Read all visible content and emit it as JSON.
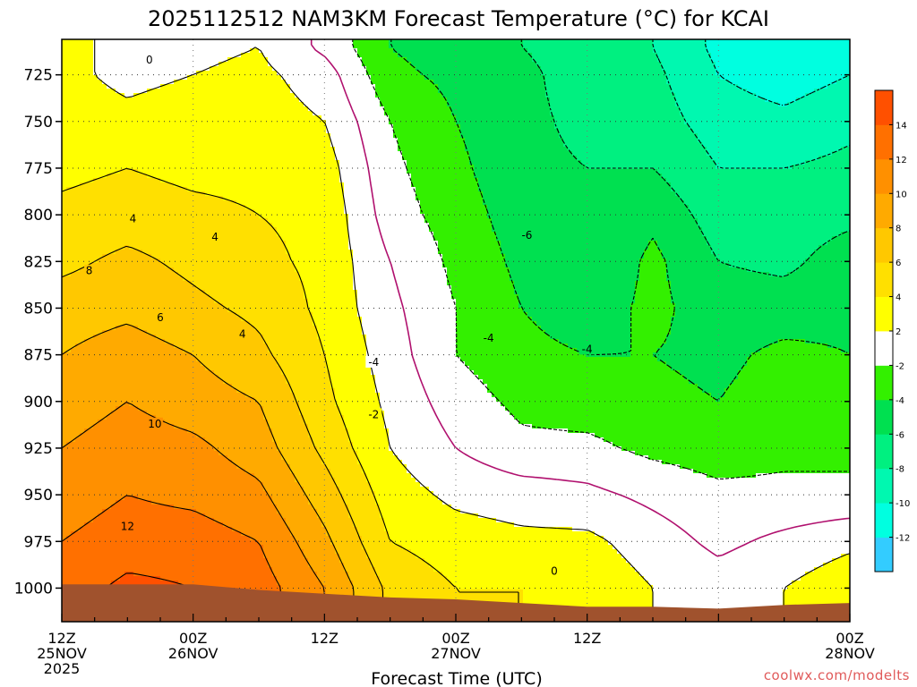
{
  "chart_data": {
    "type": "heatmap",
    "title": "2025112512 NAM3KM Forecast Temperature (°C) for KCAI",
    "xlabel": "Forecast Time (UTC)",
    "ylabel": "",
    "credit": "coolwx.com/modelts",
    "x_ticks": [
      {
        "time": "2025-11-25 12Z",
        "lines": [
          "12Z",
          "25NOV",
          "2025"
        ]
      },
      {
        "time": "2025-11-26 00Z",
        "lines": [
          "00Z",
          "26NOV"
        ]
      },
      {
        "time": "2025-11-26 12Z",
        "lines": [
          "12Z"
        ]
      },
      {
        "time": "2025-11-27 00Z",
        "lines": [
          "00Z",
          "27NOV"
        ]
      },
      {
        "time": "2025-11-27 12Z",
        "lines": [
          "12Z"
        ]
      },
      {
        "time": "2025-11-28 00Z",
        "lines": [
          "00Z",
          "28NOV"
        ]
      }
    ],
    "y_axis": {
      "unit": "hPa",
      "range": [
        1018,
        706
      ],
      "ticks": [
        725,
        750,
        775,
        800,
        825,
        850,
        875,
        900,
        925,
        950,
        975,
        1000
      ]
    },
    "colorbar": {
      "levels": [
        -14,
        -12,
        -10,
        -8,
        -6,
        -4,
        -2,
        2,
        4,
        6,
        8,
        10,
        12,
        14,
        16
      ],
      "tick_labels": [
        "-12",
        "-10",
        "-8",
        "-6",
        "-4",
        "-2",
        "2",
        "4",
        "6",
        "8",
        "10",
        "12",
        "14"
      ],
      "colors": [
        "#33ccff",
        "#00ffe0",
        "#00f8b0",
        "#00f080",
        "#00e050",
        "#33f000",
        "#ffffff",
        "#ffff00",
        "#ffe000",
        "#ffc800",
        "#ffaa00",
        "#ff9000",
        "#ff7000",
        "#ff5000"
      ]
    },
    "contour_labels": [
      {
        "text": "0",
        "time_h": 8.0,
        "p": 717
      },
      {
        "text": "4",
        "time_h": 6.5,
        "p": 802
      },
      {
        "text": "4",
        "time_h": 14.0,
        "p": 812
      },
      {
        "text": "8",
        "time_h": 2.5,
        "p": 830
      },
      {
        "text": "6",
        "time_h": 9.0,
        "p": 855
      },
      {
        "text": "4",
        "time_h": 16.5,
        "p": 864
      },
      {
        "text": "10",
        "time_h": 8.5,
        "p": 912
      },
      {
        "text": "12",
        "time_h": 6.0,
        "p": 967
      },
      {
        "text": "-4",
        "time_h": 28.5,
        "p": 879
      },
      {
        "text": "-2",
        "time_h": 28.5,
        "p": 907
      },
      {
        "text": "-6",
        "time_h": 42.5,
        "p": 811
      },
      {
        "text": "-4",
        "time_h": 39.0,
        "p": 866
      },
      {
        "text": "-4",
        "time_h": 48.0,
        "p": 872
      },
      {
        "text": "0",
        "time_h": 45.0,
        "p": 991
      }
    ],
    "surface_pressure_hPa": [
      [
        0,
        998
      ],
      [
        12,
        998
      ],
      [
        18,
        1001
      ],
      [
        24,
        1003
      ],
      [
        30,
        1005
      ],
      [
        36,
        1006
      ],
      [
        42,
        1008
      ],
      [
        48,
        1010
      ],
      [
        54,
        1010
      ],
      [
        60,
        1011
      ],
      [
        66,
        1009
      ],
      [
        72,
        1008
      ]
    ],
    "temperature_grid": {
      "unit": "°C",
      "time_h": [
        0,
        6,
        12,
        18,
        24,
        30,
        36,
        42,
        48,
        54,
        60,
        66,
        72
      ],
      "pressure_hPa": [
        710,
        725,
        750,
        775,
        800,
        825,
        850,
        875,
        900,
        925,
        950,
        975,
        1000,
        1015
      ],
      "values": [
        [
          2.5,
          2.5,
          3.0,
          3.5,
          4.5,
          5.5,
          7.0,
          8.0,
          9.0,
          10.0,
          11.0,
          12.0,
          13.0,
          13.0
        ],
        [
          1.5,
          1.5,
          2.5,
          4.0,
          5.0,
          6.5,
          7.5,
          9.0,
          10.0,
          11.0,
          12.0,
          13.0,
          14.5,
          14.5
        ],
        [
          1.5,
          2.0,
          3.0,
          3.5,
          4.5,
          5.5,
          6.5,
          8.0,
          9.0,
          10.5,
          11.5,
          13.0,
          14.0,
          14.0
        ],
        [
          2.0,
          2.5,
          3.0,
          3.5,
          4.0,
          4.5,
          5.5,
          6.5,
          8.0,
          9.0,
          10.5,
          12.0,
          13.0,
          13.0
        ],
        [
          -0.5,
          1.0,
          2.0,
          3.0,
          3.5,
          3.5,
          3.5,
          4.0,
          4.5,
          5.5,
          7.0,
          8.5,
          10.0,
          10.0
        ],
        [
          -4.0,
          -3.5,
          -2.0,
          -1.5,
          -1.0,
          0.0,
          0.5,
          1.0,
          1.5,
          2.0,
          3.0,
          4.0,
          5.5,
          5.5
        ],
        [
          -5.0,
          -4.5,
          -4.0,
          -3.5,
          -3.0,
          -2.5,
          -2.0,
          -2.0,
          -1.0,
          0.0,
          1.5,
          3.0,
          4.0,
          4.0
        ],
        [
          -6.0,
          -5.5,
          -5.5,
          -5.5,
          -5.0,
          -4.5,
          -4.0,
          -3.5,
          -2.5,
          -1.5,
          1.0,
          2.5,
          4.0,
          4.0
        ],
        [
          -7.0,
          -7.0,
          -6.5,
          -6.0,
          -6.0,
          -6.0,
          -5.0,
          -4.0,
          -3.0,
          -1.5,
          0.5,
          2.5,
          3.5,
          3.5
        ],
        [
          -8.0,
          -7.5,
          -7.0,
          -6.0,
          -4.5,
          -3.5,
          -3.5,
          -4.0,
          -3.5,
          -2.5,
          -0.5,
          1.0,
          2.0,
          2.0
        ],
        [
          -10.5,
          -10.0,
          -9.0,
          -8.0,
          -7.0,
          -6.0,
          -5.0,
          -4.5,
          -4.0,
          -3.0,
          -1.5,
          -0.5,
          1.0,
          1.0
        ],
        [
          -11.5,
          -11.0,
          -9.5,
          -8.0,
          -7.0,
          -6.5,
          -5.0,
          -3.5,
          -3.0,
          -2.5,
          -1.5,
          0.5,
          2.0,
          2.0
        ],
        [
          -11.0,
          -10.0,
          -8.5,
          -7.5,
          -6.5,
          -5.0,
          -4.5,
          -4.0,
          -3.0,
          -2.5,
          -1.5,
          1.5,
          3.5,
          3.5
        ]
      ]
    }
  }
}
